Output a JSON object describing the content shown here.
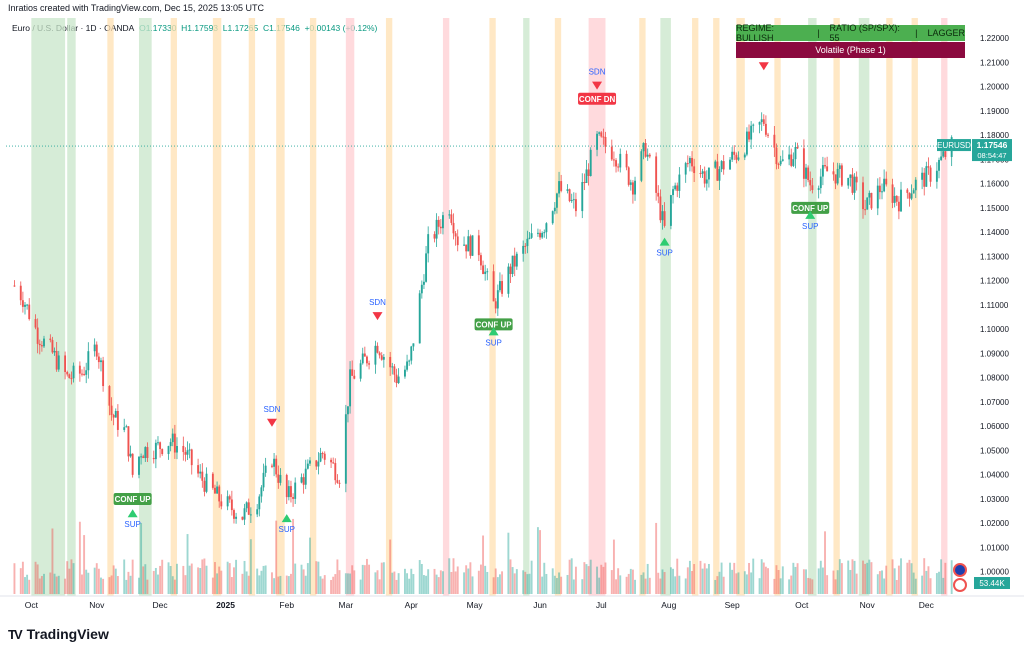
{
  "header": {
    "credit": "Inratios created with TradingView.com, Dec 15, 2025 13:05 UTC",
    "symbol_line": "Euro / U.S. Dollar · 1D · OANDA",
    "open": "O1.17330",
    "high": "H1.17593",
    "low": "L1.17265",
    "close": "C1.17546",
    "change": "+0.00143 (+0.12%)"
  },
  "regime_panel": {
    "regime": "REGIME: BULLISH",
    "sep": "|",
    "ratio": "RATIO (SP/SPX): 55",
    "sep2": "|",
    "status": "LAGGER",
    "phase": "Volatile (Phase 1)"
  },
  "price_tag": {
    "symbol": "EURUSD",
    "price": "1.17546",
    "countdown": "08:54:47"
  },
  "volume_tag": "53.44K",
  "brand": {
    "logo": "TV",
    "name": "TradingView"
  },
  "colors": {
    "up": "#26a69a",
    "down": "#ef5350",
    "green_band": "#c8e6c9",
    "orange_band": "#ffe0b2",
    "red_band": "#ffcdd2",
    "sup_arrow": "#2ecc71",
    "sdn_arrow": "#f23645"
  },
  "chart_data": {
    "type": "candlestick",
    "y_axis": {
      "min": 0.99,
      "max": 1.225,
      "ticks": [
        "1.22000",
        "1.21000",
        "1.20000",
        "1.19000",
        "1.18000",
        "1.17000",
        "1.16000",
        "1.15000",
        "1.14000",
        "1.13000",
        "1.12000",
        "1.11000",
        "1.10000",
        "1.09000",
        "1.08000",
        "1.07000",
        "1.06000",
        "1.05000",
        "1.04000",
        "1.03000",
        "1.02000",
        "1.01000",
        "1.00000"
      ]
    },
    "x_axis": {
      "labels": [
        "Oct",
        "Nov",
        "Dec",
        "2025",
        "Feb",
        "Mar",
        "Apr",
        "May",
        "Jun",
        "Jul",
        "Aug",
        "Sep",
        "Oct",
        "Nov",
        "Dec"
      ],
      "bold": [
        "2025"
      ]
    },
    "close_path": [
      {
        "d": "2024-09-27",
        "c": 1.118
      },
      {
        "d": "2024-10-01",
        "c": 1.113
      },
      {
        "d": "2024-10-08",
        "c": 1.098
      },
      {
        "d": "2024-10-15",
        "c": 1.09
      },
      {
        "d": "2024-10-22",
        "c": 1.08
      },
      {
        "d": "2024-10-29",
        "c": 1.082
      },
      {
        "d": "2024-11-05",
        "c": 1.093
      },
      {
        "d": "2024-11-12",
        "c": 1.065
      },
      {
        "d": "2024-11-19",
        "c": 1.057
      },
      {
        "d": "2024-11-22",
        "c": 1.04
      },
      {
        "d": "2024-11-26",
        "c": 1.05
      },
      {
        "d": "2024-12-03",
        "c": 1.051
      },
      {
        "d": "2024-12-10",
        "c": 1.054
      },
      {
        "d": "2024-12-17",
        "c": 1.049
      },
      {
        "d": "2024-12-23",
        "c": 1.04
      },
      {
        "d": "2025-01-02",
        "c": 1.03
      },
      {
        "d": "2025-01-13",
        "c": 1.023
      },
      {
        "d": "2025-01-20",
        "c": 1.03
      },
      {
        "d": "2025-01-27",
        "c": 1.047
      },
      {
        "d": "2025-02-03",
        "c": 1.03
      },
      {
        "d": "2025-02-10",
        "c": 1.038
      },
      {
        "d": "2025-02-20",
        "c": 1.049
      },
      {
        "d": "2025-02-28",
        "c": 1.04
      },
      {
        "d": "2025-03-05",
        "c": 1.079
      },
      {
        "d": "2025-03-18",
        "c": 1.094
      },
      {
        "d": "2025-03-27",
        "c": 1.08
      },
      {
        "d": "2025-04-02",
        "c": 1.085
      },
      {
        "d": "2025-04-11",
        "c": 1.135
      },
      {
        "d": "2025-04-21",
        "c": 1.151
      },
      {
        "d": "2025-04-25",
        "c": 1.137
      },
      {
        "d": "2025-05-05",
        "c": 1.133
      },
      {
        "d": "2025-05-12",
        "c": 1.11
      },
      {
        "d": "2025-05-20",
        "c": 1.125
      },
      {
        "d": "2025-05-28",
        "c": 1.135
      },
      {
        "d": "2025-06-05",
        "c": 1.143
      },
      {
        "d": "2025-06-12",
        "c": 1.158
      },
      {
        "d": "2025-06-20",
        "c": 1.15
      },
      {
        "d": "2025-06-30",
        "c": 1.178
      },
      {
        "d": "2025-07-08",
        "c": 1.173
      },
      {
        "d": "2025-07-17",
        "c": 1.16
      },
      {
        "d": "2025-07-23",
        "c": 1.175
      },
      {
        "d": "2025-08-01",
        "c": 1.141
      },
      {
        "d": "2025-08-05",
        "c": 1.157
      },
      {
        "d": "2025-08-13",
        "c": 1.17
      },
      {
        "d": "2025-08-21",
        "c": 1.162
      },
      {
        "d": "2025-08-28",
        "c": 1.167
      },
      {
        "d": "2025-09-05",
        "c": 1.173
      },
      {
        "d": "2025-09-17",
        "c": 1.186
      },
      {
        "d": "2025-09-25",
        "c": 1.168
      },
      {
        "d": "2025-10-02",
        "c": 1.173
      },
      {
        "d": "2025-10-09",
        "c": 1.16
      },
      {
        "d": "2025-10-17",
        "c": 1.165
      },
      {
        "d": "2025-10-28",
        "c": 1.162
      },
      {
        "d": "2025-11-04",
        "c": 1.15
      },
      {
        "d": "2025-11-12",
        "c": 1.159
      },
      {
        "d": "2025-11-20",
        "c": 1.153
      },
      {
        "d": "2025-11-28",
        "c": 1.16
      },
      {
        "d": "2025-12-05",
        "c": 1.164
      },
      {
        "d": "2025-12-15",
        "c": 1.1755
      }
    ],
    "signals": [
      {
        "type": "SDN",
        "date": "2025-01-27",
        "price": 1.061
      },
      {
        "type": "SUP",
        "date": "2025-02-03",
        "price": 1.018
      },
      {
        "type": "CONF UP",
        "date": "2024-11-22",
        "price": 1.03
      },
      {
        "type": "SUP",
        "date": "2024-11-22",
        "price": 1.02
      },
      {
        "type": "SDN",
        "date": "2025-03-18",
        "price": 1.105
      },
      {
        "type": "CONF UP",
        "date": "2025-05-12",
        "price": 1.102
      },
      {
        "type": "SUP",
        "date": "2025-05-12",
        "price": 1.095
      },
      {
        "type": "SDN",
        "date": "2025-06-30",
        "price": 1.2
      },
      {
        "type": "CONF DN",
        "date": "2025-06-30",
        "price": 1.195
      },
      {
        "type": "SUP",
        "date": "2025-08-01",
        "price": 1.132
      },
      {
        "type": "SDN",
        "date": "2025-09-17",
        "price": 1.208
      },
      {
        "type": "CONF UP",
        "date": "2025-10-09",
        "price": 1.15
      },
      {
        "type": "SUP",
        "date": "2025-10-09",
        "price": 1.143
      }
    ]
  }
}
